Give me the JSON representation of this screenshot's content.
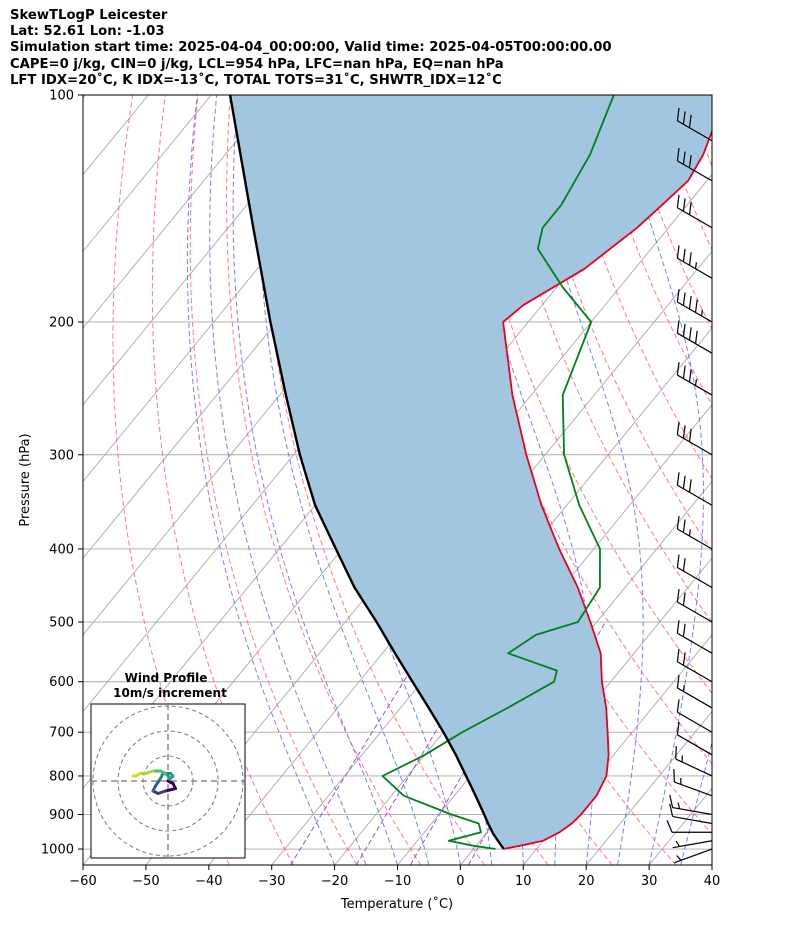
{
  "header": {
    "line1": "SkewTLogP Leicester",
    "line2": "Lat: 52.61   Lon: -1.03",
    "line3": "Simulation start time: 2025-04-04_00:00:00, Valid time: 2025-04-05T00:00:00.00",
    "line4": "CAPE=0 j/kg, CIN=0 j/kg, LCL=954 hPa, LFC=nan hPa, EQ=nan hPa",
    "line5": "LFT IDX=20˚C, K IDX=-13˚C, TOTAL TOTS=31˚C, SHWTR_IDX=12˚C"
  },
  "chart_data": [
    {
      "type": "line",
      "subtype": "skew-T log-P",
      "xlabel": "Temperature (˚C)",
      "ylabel": "Pressure (hPa)",
      "xlim": [
        -60,
        40
      ],
      "ylim": [
        1050,
        100
      ],
      "yscale": "log",
      "xticks": [
        "−60",
        "−50",
        "−40",
        "−30",
        "−20",
        "−10",
        "0",
        "10",
        "20",
        "30",
        "40"
      ],
      "yticks": [
        "100",
        "200",
        "300",
        "400",
        "500",
        "600",
        "700",
        "800",
        "900",
        "1000"
      ],
      "grid": true,
      "colors": {
        "temperature": "#e8001c",
        "dewpoint": "#00801a",
        "parcel": "#000000",
        "shade": "#a3c6e0",
        "dry_adiabat": "#ff6b6b",
        "moist_adiabat": "#5a6bff",
        "mixing_ratio": "#9a50c8",
        "isotherm": "#aaaaaa"
      },
      "series": [
        {
          "key": "temperature",
          "p": [
            1000,
            990,
            975,
            950,
            925,
            900,
            850,
            800,
            750,
            700,
            650,
            600,
            550,
            500,
            450,
            400,
            350,
            300,
            250,
            200,
            190,
            170,
            150,
            140,
            130,
            120,
            110,
            100
          ],
          "t": [
            4.7,
            7,
            10,
            11.5,
            12.3,
            12.6,
            12.6,
            11.6,
            9.2,
            6.1,
            2.7,
            -1.4,
            -5.3,
            -11,
            -17.5,
            -25.5,
            -34,
            -43,
            -53,
            -64,
            -63,
            -58,
            -55,
            -54,
            -53,
            -54,
            -56,
            -60
          ]
        },
        {
          "key": "dewpoint",
          "p": [
            1000,
            990,
            975,
            950,
            925,
            900,
            850,
            800,
            750,
            700,
            650,
            600,
            580,
            550,
            520,
            500,
            450,
            400,
            350,
            300,
            250,
            200,
            180,
            160,
            150,
            140,
            120,
            100
          ],
          "t": [
            3.5,
            -0.5,
            -5,
            -1,
            -2.5,
            -8,
            -18,
            -24,
            -20,
            -17,
            -13,
            -9,
            -10,
            -20,
            -18,
            -13,
            -14,
            -19,
            -28,
            -37,
            -45,
            -50,
            -59,
            -68,
            -70,
            -70,
            -72,
            -76
          ]
        },
        {
          "key": "parcel",
          "p": [
            1000,
            975,
            954,
            925,
            900,
            850,
            800,
            750,
            700,
            650,
            600,
            550,
            500,
            450,
            400,
            350,
            300,
            250,
            200,
            150,
            100
          ],
          "t": [
            4.8,
            2.8,
            1.1,
            -1,
            -2.8,
            -6.6,
            -10.7,
            -15.1,
            -20,
            -25.5,
            -31.5,
            -38,
            -45,
            -53,
            -61,
            -70,
            -79,
            -89,
            -101,
            -116,
            -137
          ]
        }
      ],
      "wind_barbs": {
        "p": [
          1000,
          975,
          950,
          925,
          900,
          850,
          800,
          750,
          700,
          650,
          600,
          550,
          500,
          450,
          400,
          350,
          300,
          250,
          220,
          200,
          175,
          150,
          130,
          115
        ],
        "speed_kt": [
          5,
          5,
          10,
          10,
          15,
          15,
          15,
          10,
          10,
          15,
          20,
          20,
          20,
          20,
          25,
          30,
          30,
          35,
          40,
          45,
          35,
          30,
          30,
          30
        ],
        "direction_deg": [
          250,
          260,
          270,
          280,
          280,
          290,
          295,
          300,
          300,
          300,
          300,
          300,
          300,
          300,
          300,
          300,
          300,
          300,
          300,
          300,
          300,
          300,
          300,
          300
        ]
      }
    },
    {
      "type": "scatter",
      "subtype": "hodograph",
      "title": "Wind Profile",
      "subtitle": "10m/s increment",
      "rings_ms": [
        10,
        20,
        30
      ],
      "u": [
        0,
        2,
        3,
        -1,
        -4,
        -6,
        -5,
        -3,
        -2,
        1,
        2,
        1,
        -1,
        -3,
        -6,
        -9,
        -11,
        -13,
        -14
      ],
      "v": [
        0,
        -1,
        -3,
        -4,
        -5,
        -4,
        -2,
        1,
        3,
        3,
        2,
        1,
        3,
        4,
        4,
        3,
        3,
        2,
        2
      ],
      "colormap": "viridis"
    }
  ]
}
